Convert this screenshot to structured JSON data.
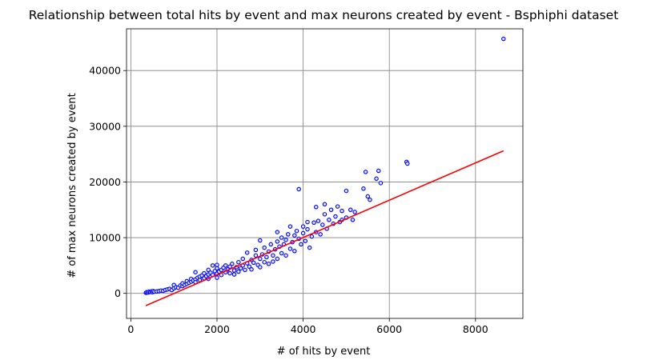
{
  "chart_data": {
    "type": "scatter",
    "title": "Relationship between total hits by event and max neurons created by event - Bsphiphi dataset",
    "xlabel": "# of hits by event",
    "ylabel": "# of max neurons created by event",
    "xlim": [
      -100,
      9100
    ],
    "ylim": [
      -4500,
      47500
    ],
    "xticks": [
      0,
      2000,
      4000,
      6000,
      8000
    ],
    "yticks": [
      0,
      10000,
      20000,
      30000,
      40000
    ],
    "grid": true,
    "colors": {
      "marker_edge": "#0000ff",
      "marker_face": "#dbe6f2",
      "fit_line": "#ff0000",
      "grid": "#808080"
    },
    "series": [
      {
        "kind": "points",
        "points": [
          [
            350,
            100
          ],
          [
            370,
            200
          ],
          [
            400,
            150
          ],
          [
            420,
            300
          ],
          [
            450,
            250
          ],
          [
            480,
            350
          ],
          [
            500,
            200
          ],
          [
            520,
            400
          ],
          [
            550,
            300
          ],
          [
            600,
            350
          ],
          [
            650,
            400
          ],
          [
            700,
            500
          ],
          [
            750,
            450
          ],
          [
            800,
            600
          ],
          [
            850,
            700
          ],
          [
            900,
            800
          ],
          [
            950,
            600
          ],
          [
            1000,
            900
          ],
          [
            1000,
            1500
          ],
          [
            1050,
            1100
          ],
          [
            1100,
            1000
          ],
          [
            1150,
            1400
          ],
          [
            1200,
            1300
          ],
          [
            1200,
            1800
          ],
          [
            1250,
            1500
          ],
          [
            1300,
            1700
          ],
          [
            1300,
            2200
          ],
          [
            1350,
            1900
          ],
          [
            1400,
            2100
          ],
          [
            1400,
            2600
          ],
          [
            1450,
            2300
          ],
          [
            1500,
            2500
          ],
          [
            1500,
            2000
          ],
          [
            1500,
            3800
          ],
          [
            1550,
            2800
          ],
          [
            1600,
            3000
          ],
          [
            1600,
            2400
          ],
          [
            1650,
            3200
          ],
          [
            1700,
            2700
          ],
          [
            1700,
            3600
          ],
          [
            1750,
            3100
          ],
          [
            1800,
            3400
          ],
          [
            1800,
            2600
          ],
          [
            1800,
            4200
          ],
          [
            1850,
            3700
          ],
          [
            1900,
            3300
          ],
          [
            1900,
            5000
          ],
          [
            1950,
            4000
          ],
          [
            2000,
            3500
          ],
          [
            2000,
            4500
          ],
          [
            2000,
            2800
          ],
          [
            2000,
            5100
          ],
          [
            2050,
            3900
          ],
          [
            2100,
            4200
          ],
          [
            2100,
            3300
          ],
          [
            2150,
            4600
          ],
          [
            2200,
            3800
          ],
          [
            2200,
            5000
          ],
          [
            2250,
            4300
          ],
          [
            2300,
            3600
          ],
          [
            2300,
            4800
          ],
          [
            2350,
            5300
          ],
          [
            2400,
            4100
          ],
          [
            2400,
            3400
          ],
          [
            2450,
            4700
          ],
          [
            2500,
            5600
          ],
          [
            2500,
            3900
          ],
          [
            2550,
            4500
          ],
          [
            2600,
            5000
          ],
          [
            2600,
            6200
          ],
          [
            2650,
            4200
          ],
          [
            2700,
            5400
          ],
          [
            2700,
            7300
          ],
          [
            2750,
            4800
          ],
          [
            2800,
            6000
          ],
          [
            2800,
            4300
          ],
          [
            2850,
            5500
          ],
          [
            2900,
            6800
          ],
          [
            2900,
            7800
          ],
          [
            2950,
            5100
          ],
          [
            3000,
            6200
          ],
          [
            3000,
            4700
          ],
          [
            3000,
            9500
          ],
          [
            3050,
            7000
          ],
          [
            3100,
            5600
          ],
          [
            3100,
            8200
          ],
          [
            3150,
            6500
          ],
          [
            3200,
            7500
          ],
          [
            3200,
            5300
          ],
          [
            3250,
            8800
          ],
          [
            3300,
            6800
          ],
          [
            3300,
            5700
          ],
          [
            3350,
            7900
          ],
          [
            3400,
            9300
          ],
          [
            3400,
            6200
          ],
          [
            3400,
            11000
          ],
          [
            3450,
            8400
          ],
          [
            3500,
            7200
          ],
          [
            3500,
            10000
          ],
          [
            3550,
            8800
          ],
          [
            3600,
            6800
          ],
          [
            3600,
            9600
          ],
          [
            3650,
            10600
          ],
          [
            3700,
            8000
          ],
          [
            3700,
            12000
          ],
          [
            3750,
            9200
          ],
          [
            3800,
            10400
          ],
          [
            3800,
            7600
          ],
          [
            3850,
            11200
          ],
          [
            3900,
            9800
          ],
          [
            3900,
            18700
          ],
          [
            3950,
            8800
          ],
          [
            4000,
            10800
          ],
          [
            4000,
            12000
          ],
          [
            4050,
            9400
          ],
          [
            4100,
            11500
          ],
          [
            4100,
            12800
          ],
          [
            4150,
            8200
          ],
          [
            4200,
            10200
          ],
          [
            4250,
            12700
          ],
          [
            4300,
            11000
          ],
          [
            4300,
            15500
          ],
          [
            4350,
            13000
          ],
          [
            4400,
            10600
          ],
          [
            4450,
            12300
          ],
          [
            4500,
            14200
          ],
          [
            4500,
            16000
          ],
          [
            4550,
            11600
          ],
          [
            4600,
            13200
          ],
          [
            4650,
            15000
          ],
          [
            4700,
            12500
          ],
          [
            4750,
            13800
          ],
          [
            4800,
            15600
          ],
          [
            4850,
            12800
          ],
          [
            4900,
            14800
          ],
          [
            4900,
            13200
          ],
          [
            5000,
            13600
          ],
          [
            5000,
            18400
          ],
          [
            5100,
            15000
          ],
          [
            5150,
            13200
          ],
          [
            5200,
            14600
          ],
          [
            5400,
            18800
          ],
          [
            5450,
            21800
          ],
          [
            5500,
            17400
          ],
          [
            5550,
            16800
          ],
          [
            5700,
            20600
          ],
          [
            5750,
            22000
          ],
          [
            5800,
            19800
          ],
          [
            6400,
            23600
          ],
          [
            6420,
            23300
          ],
          [
            8650,
            45700
          ]
        ]
      },
      {
        "kind": "fit_line",
        "points": [
          [
            350,
            -2200
          ],
          [
            8650,
            25600
          ]
        ]
      }
    ]
  }
}
